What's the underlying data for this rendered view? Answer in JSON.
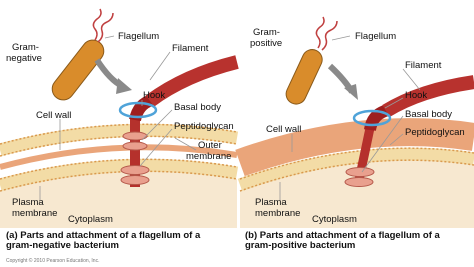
{
  "panels": [
    {
      "labels": [
        {
          "lines": [
            "Flagellum"
          ]
        },
        {
          "lines": [
            "Gram-",
            "negative"
          ]
        },
        {
          "lines": [
            "Filament"
          ]
        },
        {
          "lines": [
            "Hook"
          ]
        },
        {
          "lines": [
            "Basal body"
          ]
        },
        {
          "lines": [
            "Peptidoglycan"
          ]
        },
        {
          "lines": [
            "Outer",
            "membrane"
          ]
        },
        {
          "lines": [
            "Cell wall"
          ]
        },
        {
          "lines": [
            "Plasma",
            "membrane"
          ]
        },
        {
          "lines": [
            "Cytoplasm"
          ]
        }
      ],
      "caption": [
        "(a) Parts and attachment of a flagellum of a",
        "gram-negative bacterium"
      ]
    },
    {
      "labels": [
        {
          "lines": [
            "Flagellum"
          ]
        },
        {
          "lines": [
            "Gram-",
            "positive"
          ]
        },
        {
          "lines": [
            "Filament"
          ]
        },
        {
          "lines": [
            "Hook"
          ]
        },
        {
          "lines": [
            "Basal body"
          ]
        },
        {
          "lines": [
            "Peptidoglycan"
          ]
        },
        {
          "lines": [
            "Cell wall"
          ]
        },
        {
          "lines": [
            "Plasma",
            "membrane"
          ]
        },
        {
          "lines": [
            "Cytoplasm"
          ]
        }
      ],
      "caption": [
        "(b) Parts and attachment of a flagellum of a",
        "gram-positive bacterium"
      ]
    }
  ],
  "copyright": "Copyright © 2010 Pearson Education, Inc."
}
